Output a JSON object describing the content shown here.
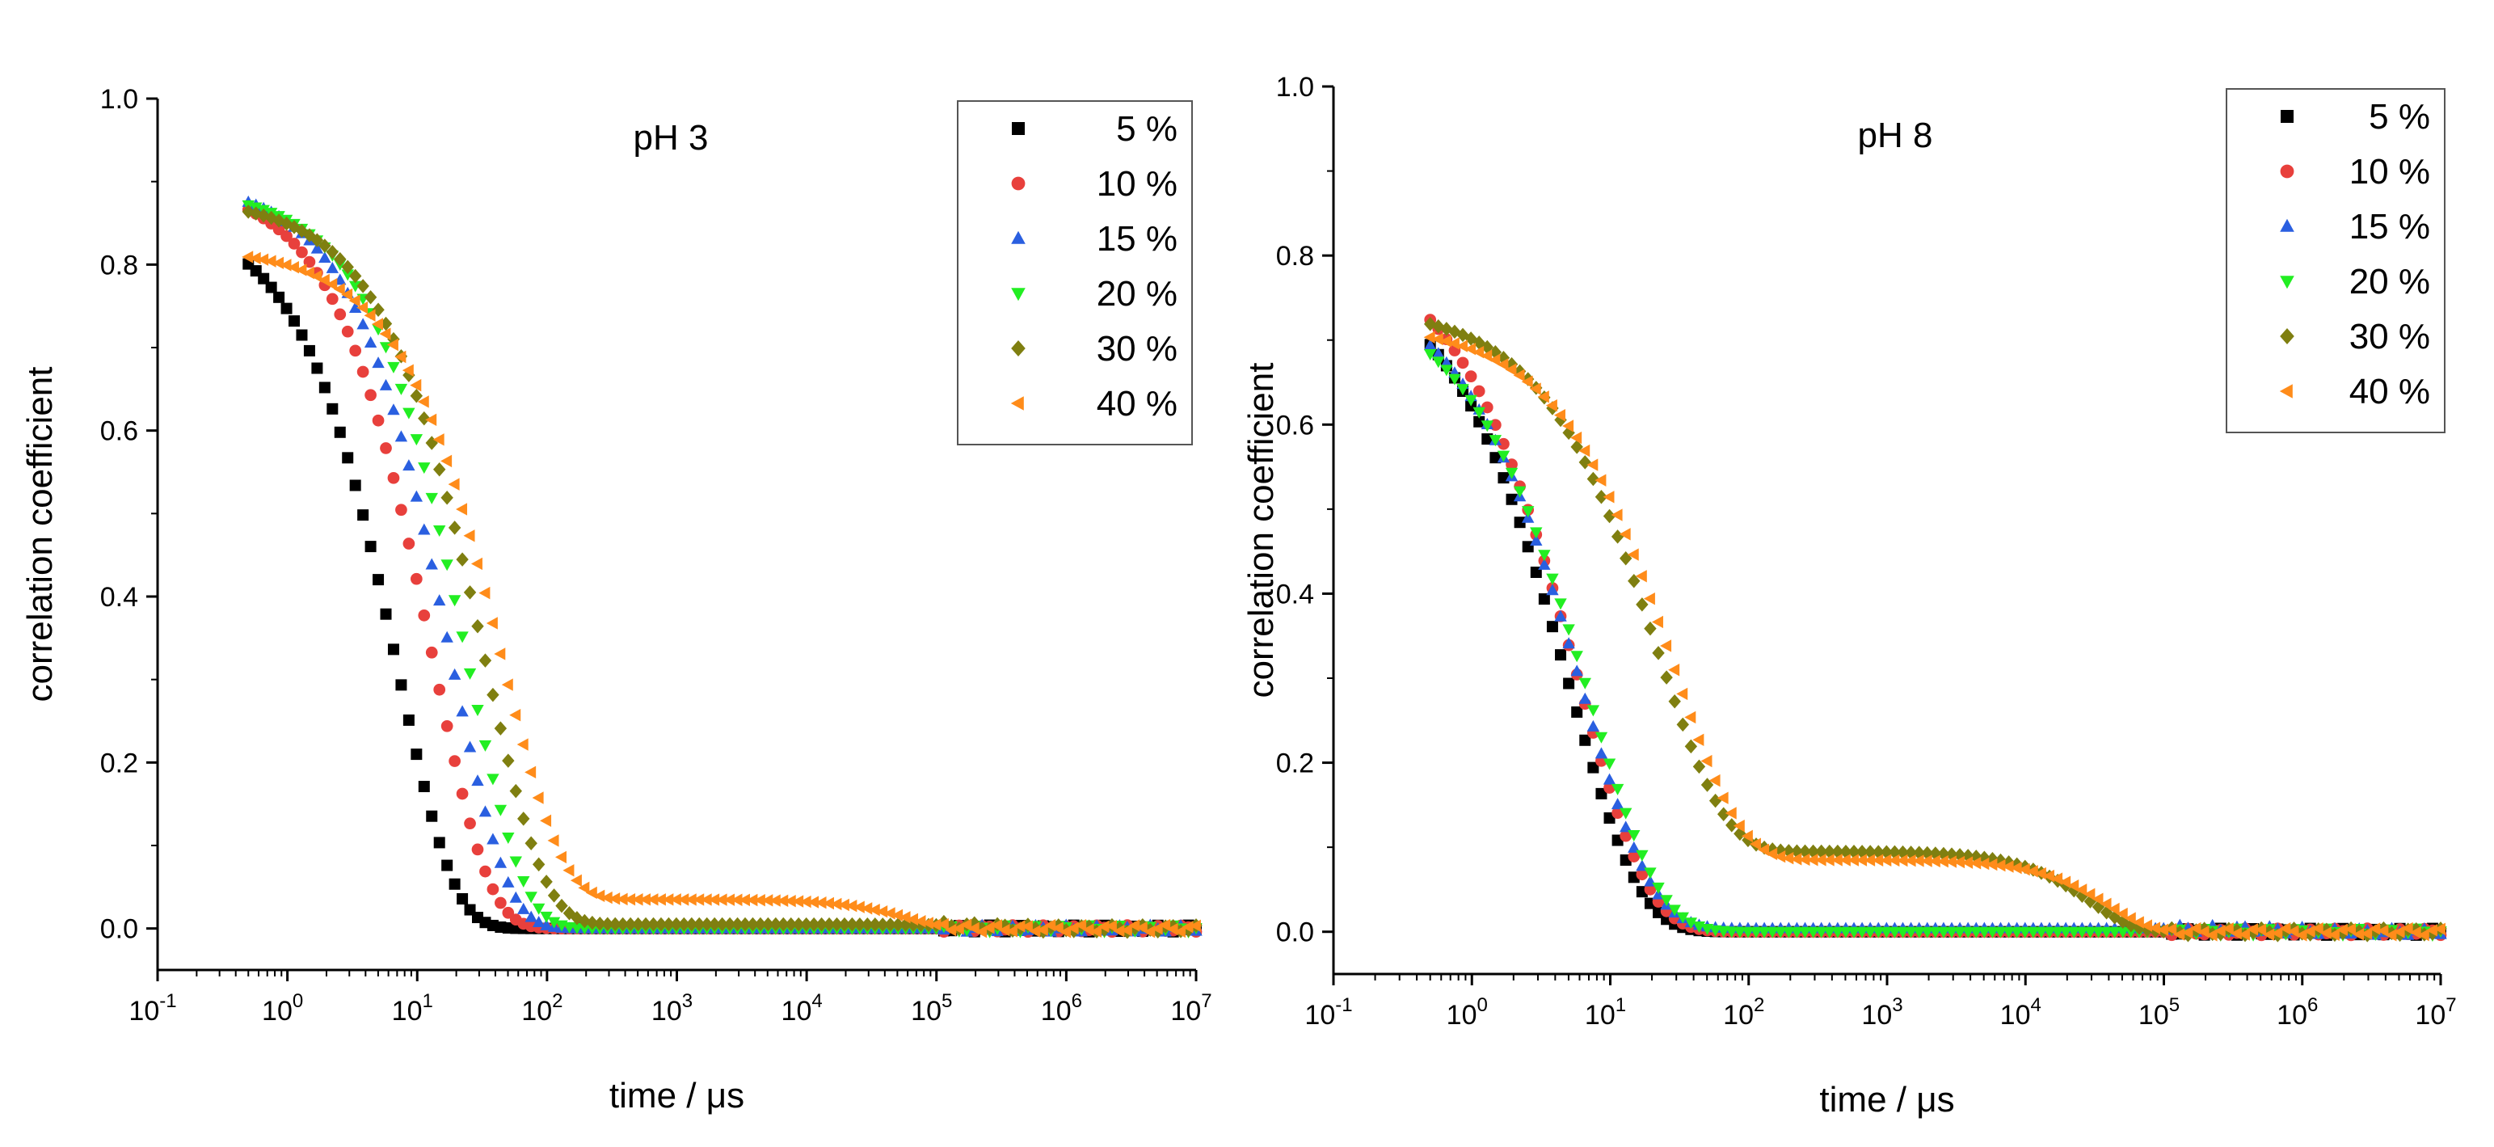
{
  "colors": {
    "s5": "#000000",
    "s10": "#e8403c",
    "s15": "#2a5fe0",
    "s20": "#22ee22",
    "s30": "#7f7f10",
    "s40": "#ff8c1a"
  },
  "chart_data": [
    {
      "type": "scatter",
      "title": "pH 3",
      "xlabel": "time / μs",
      "ylabel": "correlation coefficient",
      "xscale": "log",
      "xlim_exp": [
        -1,
        7
      ],
      "ylim": [
        -0.05,
        1.0
      ],
      "yticks": [
        "0.0",
        "0.2",
        "0.4",
        "0.6",
        "0.8",
        "1.0"
      ],
      "xticks": [
        {
          "base": "10",
          "exp": "-1"
        },
        {
          "base": "10",
          "exp": "0"
        },
        {
          "base": "10",
          "exp": "1"
        },
        {
          "base": "10",
          "exp": "2"
        },
        {
          "base": "10",
          "exp": "3"
        },
        {
          "base": "10",
          "exp": "4"
        },
        {
          "base": "10",
          "exp": "5"
        },
        {
          "base": "10",
          "exp": "6"
        },
        {
          "base": "10",
          "exp": "7"
        }
      ],
      "legend": "top-right",
      "series": [
        {
          "name": "5 %",
          "color_key": "s5",
          "marker": "square",
          "x0": 0.5,
          "amp": 0.86,
          "tau": 7,
          "beta": 1.0,
          "plateau": 0.0,
          "tau2": 100000
        },
        {
          "name": "10 %",
          "color_key": "s10",
          "marker": "circle",
          "x0": 0.5,
          "amp": 0.9,
          "tau": 13,
          "beta": 1.0,
          "plateau": 0.0,
          "tau2": 100000
        },
        {
          "name": "15 %",
          "color_key": "s15",
          "marker": "triangle-up",
          "x0": 0.5,
          "amp": 0.9,
          "tau": 18,
          "beta": 1.0,
          "plateau": 0.0,
          "tau2": 100000
        },
        {
          "name": "20 %",
          "color_key": "s20",
          "marker": "triangle-down",
          "x0": 0.5,
          "amp": 0.89,
          "tau": 24,
          "beta": 1.0,
          "plateau": 0.0,
          "tau2": 100000
        },
        {
          "name": "30 %",
          "color_key": "s30",
          "marker": "diamond",
          "x0": 0.5,
          "amp": 0.88,
          "tau": 33,
          "beta": 0.95,
          "plateau": 0.005,
          "tau2": 300000
        },
        {
          "name": "40 %",
          "color_key": "s40",
          "marker": "triangle-left",
          "x0": 0.5,
          "amp": 0.82,
          "tau": 45,
          "beta": 0.95,
          "plateau": 0.035,
          "tau2": 60000
        }
      ]
    },
    {
      "type": "scatter",
      "title": "pH 8",
      "xlabel": "time / μs",
      "ylabel": "correlation coefficient",
      "xscale": "log",
      "xlim_exp": [
        -1,
        7
      ],
      "ylim": [
        -0.05,
        1.0
      ],
      "yticks": [
        "0.0",
        "0.2",
        "0.4",
        "0.6",
        "0.8",
        "1.0"
      ],
      "xticks": [
        {
          "base": "10",
          "exp": "-1"
        },
        {
          "base": "10",
          "exp": "0"
        },
        {
          "base": "10",
          "exp": "1"
        },
        {
          "base": "10",
          "exp": "2"
        },
        {
          "base": "10",
          "exp": "3"
        },
        {
          "base": "10",
          "exp": "4"
        },
        {
          "base": "10",
          "exp": "5"
        },
        {
          "base": "10",
          "exp": "6"
        },
        {
          "base": "10",
          "exp": "7"
        }
      ],
      "legend": "top-right",
      "series": [
        {
          "name": "5 %",
          "color_key": "s5",
          "marker": "square",
          "x0": 0.5,
          "amp": 0.8,
          "tau": 5,
          "beta": 0.85,
          "plateau": 0.0,
          "tau2": 100000
        },
        {
          "name": "10 %",
          "color_key": "s10",
          "marker": "circle",
          "x0": 0.5,
          "amp": 0.82,
          "tau": 5.8,
          "beta": 0.85,
          "plateau": 0.0,
          "tau2": 100000
        },
        {
          "name": "15 %",
          "color_key": "s15",
          "marker": "triangle-up",
          "x0": 0.5,
          "amp": 0.78,
          "tau": 6.2,
          "beta": 0.85,
          "plateau": 0.004,
          "tau2": 1000000
        },
        {
          "name": "20 %",
          "color_key": "s20",
          "marker": "triangle-down",
          "x0": 0.5,
          "amp": 0.76,
          "tau": 7.0,
          "beta": 0.85,
          "plateau": 0.0,
          "tau2": 100000
        },
        {
          "name": "30 %",
          "color_key": "s30",
          "marker": "diamond",
          "x0": 0.5,
          "amp": 0.74,
          "tau": 22,
          "beta": 0.9,
          "plateau": 0.095,
          "tau2": 30000
        },
        {
          "name": "40 %",
          "color_key": "s40",
          "marker": "triangle-left",
          "x0": 0.5,
          "amp": 0.72,
          "tau": 28,
          "beta": 0.9,
          "plateau": 0.085,
          "tau2": 40000
        }
      ]
    }
  ]
}
